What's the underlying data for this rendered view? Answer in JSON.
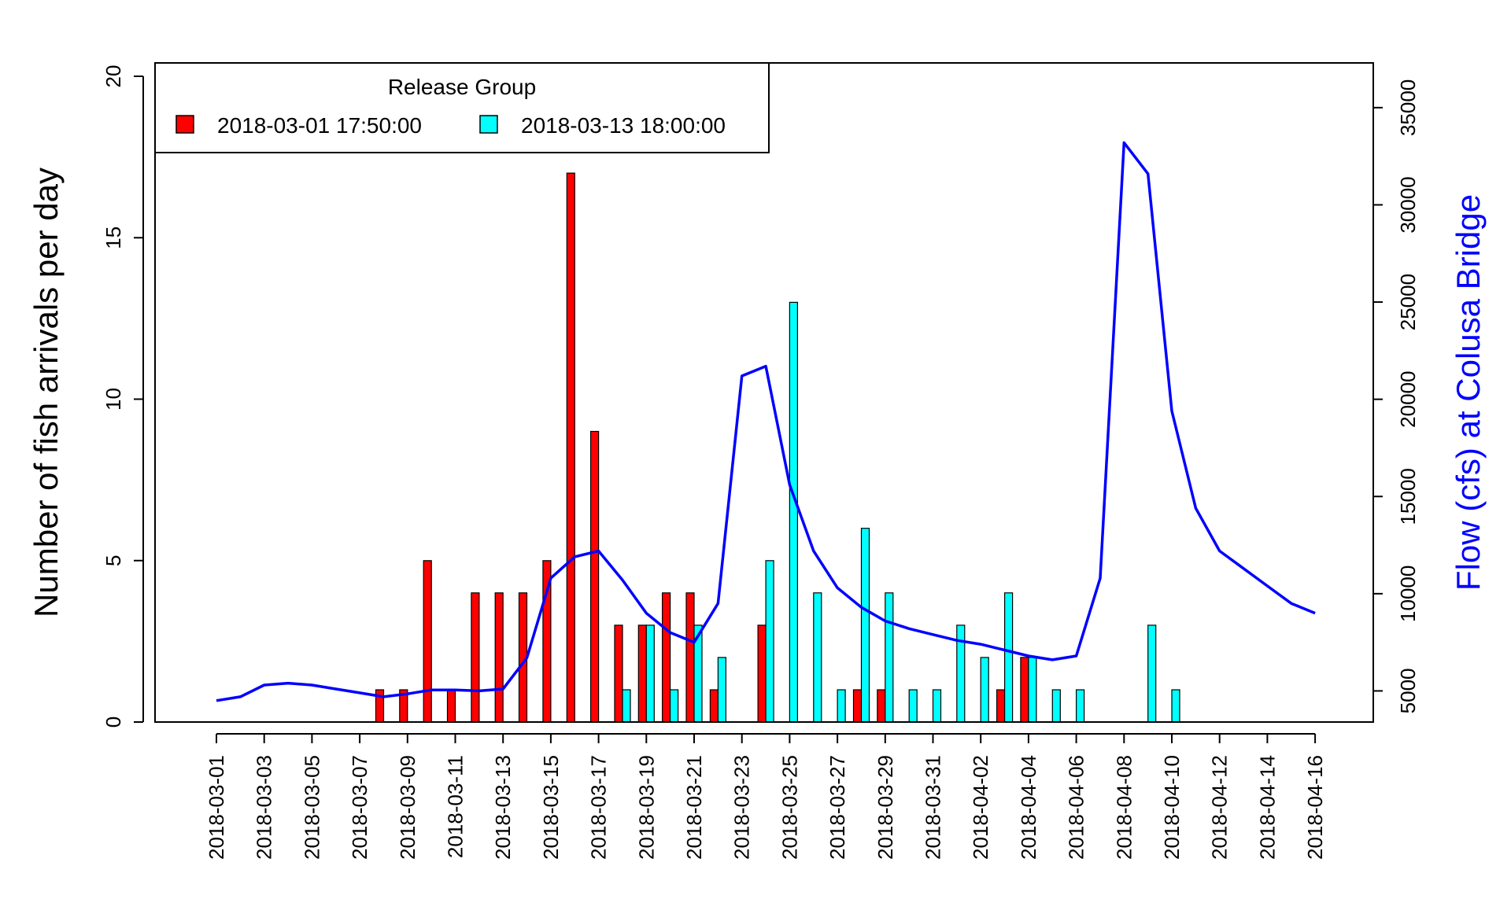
{
  "chart_data": {
    "type": "bar",
    "ylabel": "Number of fish arrivals per day",
    "y2label": "Flow (cfs) at Colusa Bridge",
    "ylim": [
      0,
      20
    ],
    "y2lim": [
      3400,
      37300
    ],
    "y_ticks": [
      "0",
      "5",
      "10",
      "15",
      "20"
    ],
    "y2_ticks": [
      "5000",
      "10000",
      "15000",
      "20000",
      "25000",
      "30000",
      "35000"
    ],
    "x_tick_labels": [
      "2018-03-01",
      "2018-03-03",
      "2018-03-05",
      "2018-03-07",
      "2018-03-09",
      "2018-03-11",
      "2018-03-13",
      "2018-03-15",
      "2018-03-17",
      "2018-03-19",
      "2018-03-21",
      "2018-03-23",
      "2018-03-25",
      "2018-03-27",
      "2018-03-29",
      "2018-03-31",
      "2018-04-02",
      "2018-04-04",
      "2018-04-06",
      "2018-04-08",
      "2018-04-10",
      "2018-04-12",
      "2018-04-14",
      "2018-04-16"
    ],
    "x_range": [
      "2018-02-26",
      "2018-04-19"
    ],
    "legend": {
      "title": "Release Group",
      "position": "top-left",
      "entries": [
        "2018-03-01 17:50:00",
        "2018-03-13 18:00:00"
      ]
    },
    "series": [
      {
        "name": "2018-03-01 17:50:00",
        "color": "#ff0000",
        "points": [
          [
            "2018-03-08",
            1
          ],
          [
            "2018-03-09",
            1
          ],
          [
            "2018-03-10",
            5
          ],
          [
            "2018-03-11",
            1
          ],
          [
            "2018-03-12",
            4
          ],
          [
            "2018-03-13",
            4
          ],
          [
            "2018-03-14",
            4
          ],
          [
            "2018-03-15",
            5
          ],
          [
            "2018-03-16",
            17
          ],
          [
            "2018-03-17",
            9
          ],
          [
            "2018-03-18",
            3
          ],
          [
            "2018-03-19",
            3
          ],
          [
            "2018-03-20",
            4
          ],
          [
            "2018-03-21",
            4
          ],
          [
            "2018-03-22",
            1
          ],
          [
            "2018-03-24",
            3
          ],
          [
            "2018-03-28",
            1
          ],
          [
            "2018-03-29",
            1
          ],
          [
            "2018-04-03",
            1
          ],
          [
            "2018-04-04",
            2
          ]
        ]
      },
      {
        "name": "2018-03-13 18:00:00",
        "color": "#00ffff",
        "points": [
          [
            "2018-03-18",
            1
          ],
          [
            "2018-03-19",
            3
          ],
          [
            "2018-03-20",
            1
          ],
          [
            "2018-03-21",
            3
          ],
          [
            "2018-03-22",
            2
          ],
          [
            "2018-03-24",
            5
          ],
          [
            "2018-03-25",
            13
          ],
          [
            "2018-03-26",
            4
          ],
          [
            "2018-03-27",
            1
          ],
          [
            "2018-03-28",
            6
          ],
          [
            "2018-03-29",
            4
          ],
          [
            "2018-03-30",
            1
          ],
          [
            "2018-03-31",
            1
          ],
          [
            "2018-04-01",
            3
          ],
          [
            "2018-04-02",
            2
          ],
          [
            "2018-04-03",
            4
          ],
          [
            "2018-04-04",
            2
          ],
          [
            "2018-04-05",
            1
          ],
          [
            "2018-04-06",
            1
          ],
          [
            "2018-04-09",
            3
          ],
          [
            "2018-04-10",
            1
          ]
        ]
      },
      {
        "name": "Flow (cfs) at Colusa Bridge",
        "type": "line",
        "color": "#0000ff",
        "points": [
          [
            "2018-03-01",
            4500
          ],
          [
            "2018-03-02",
            4700
          ],
          [
            "2018-03-03",
            5300
          ],
          [
            "2018-03-04",
            5400
          ],
          [
            "2018-03-05",
            5300
          ],
          [
            "2018-03-06",
            5100
          ],
          [
            "2018-03-07",
            4900
          ],
          [
            "2018-03-08",
            4700
          ],
          [
            "2018-03-09",
            4850
          ],
          [
            "2018-03-10",
            5050
          ],
          [
            "2018-03-11",
            5050
          ],
          [
            "2018-03-12",
            5000
          ],
          [
            "2018-03-13",
            5100
          ],
          [
            "2018-03-14",
            6700
          ],
          [
            "2018-03-15",
            10800
          ],
          [
            "2018-03-16",
            11900
          ],
          [
            "2018-03-17",
            12200
          ],
          [
            "2018-03-18",
            10700
          ],
          [
            "2018-03-19",
            9000
          ],
          [
            "2018-03-20",
            8000
          ],
          [
            "2018-03-21",
            7500
          ],
          [
            "2018-03-22",
            9500
          ],
          [
            "2018-03-23",
            21200
          ],
          [
            "2018-03-24",
            21700
          ],
          [
            "2018-03-25",
            15600
          ],
          [
            "2018-03-26",
            12200
          ],
          [
            "2018-03-27",
            10300
          ],
          [
            "2018-03-28",
            9300
          ],
          [
            "2018-03-29",
            8600
          ],
          [
            "2018-03-30",
            8200
          ],
          [
            "2018-03-31",
            7900
          ],
          [
            "2018-04-01",
            7600
          ],
          [
            "2018-04-02",
            7400
          ],
          [
            "2018-04-03",
            7100
          ],
          [
            "2018-04-04",
            6800
          ],
          [
            "2018-04-05",
            6600
          ],
          [
            "2018-04-06",
            6800
          ],
          [
            "2018-04-07",
            10800
          ],
          [
            "2018-04-08",
            33200
          ],
          [
            "2018-04-09",
            31600
          ],
          [
            "2018-04-10",
            19400
          ],
          [
            "2018-04-11",
            14400
          ],
          [
            "2018-04-12",
            12200
          ],
          [
            "2018-04-13",
            11300
          ],
          [
            "2018-04-14",
            10400
          ],
          [
            "2018-04-15",
            9500
          ],
          [
            "2018-04-16",
            9000
          ]
        ]
      }
    ]
  }
}
